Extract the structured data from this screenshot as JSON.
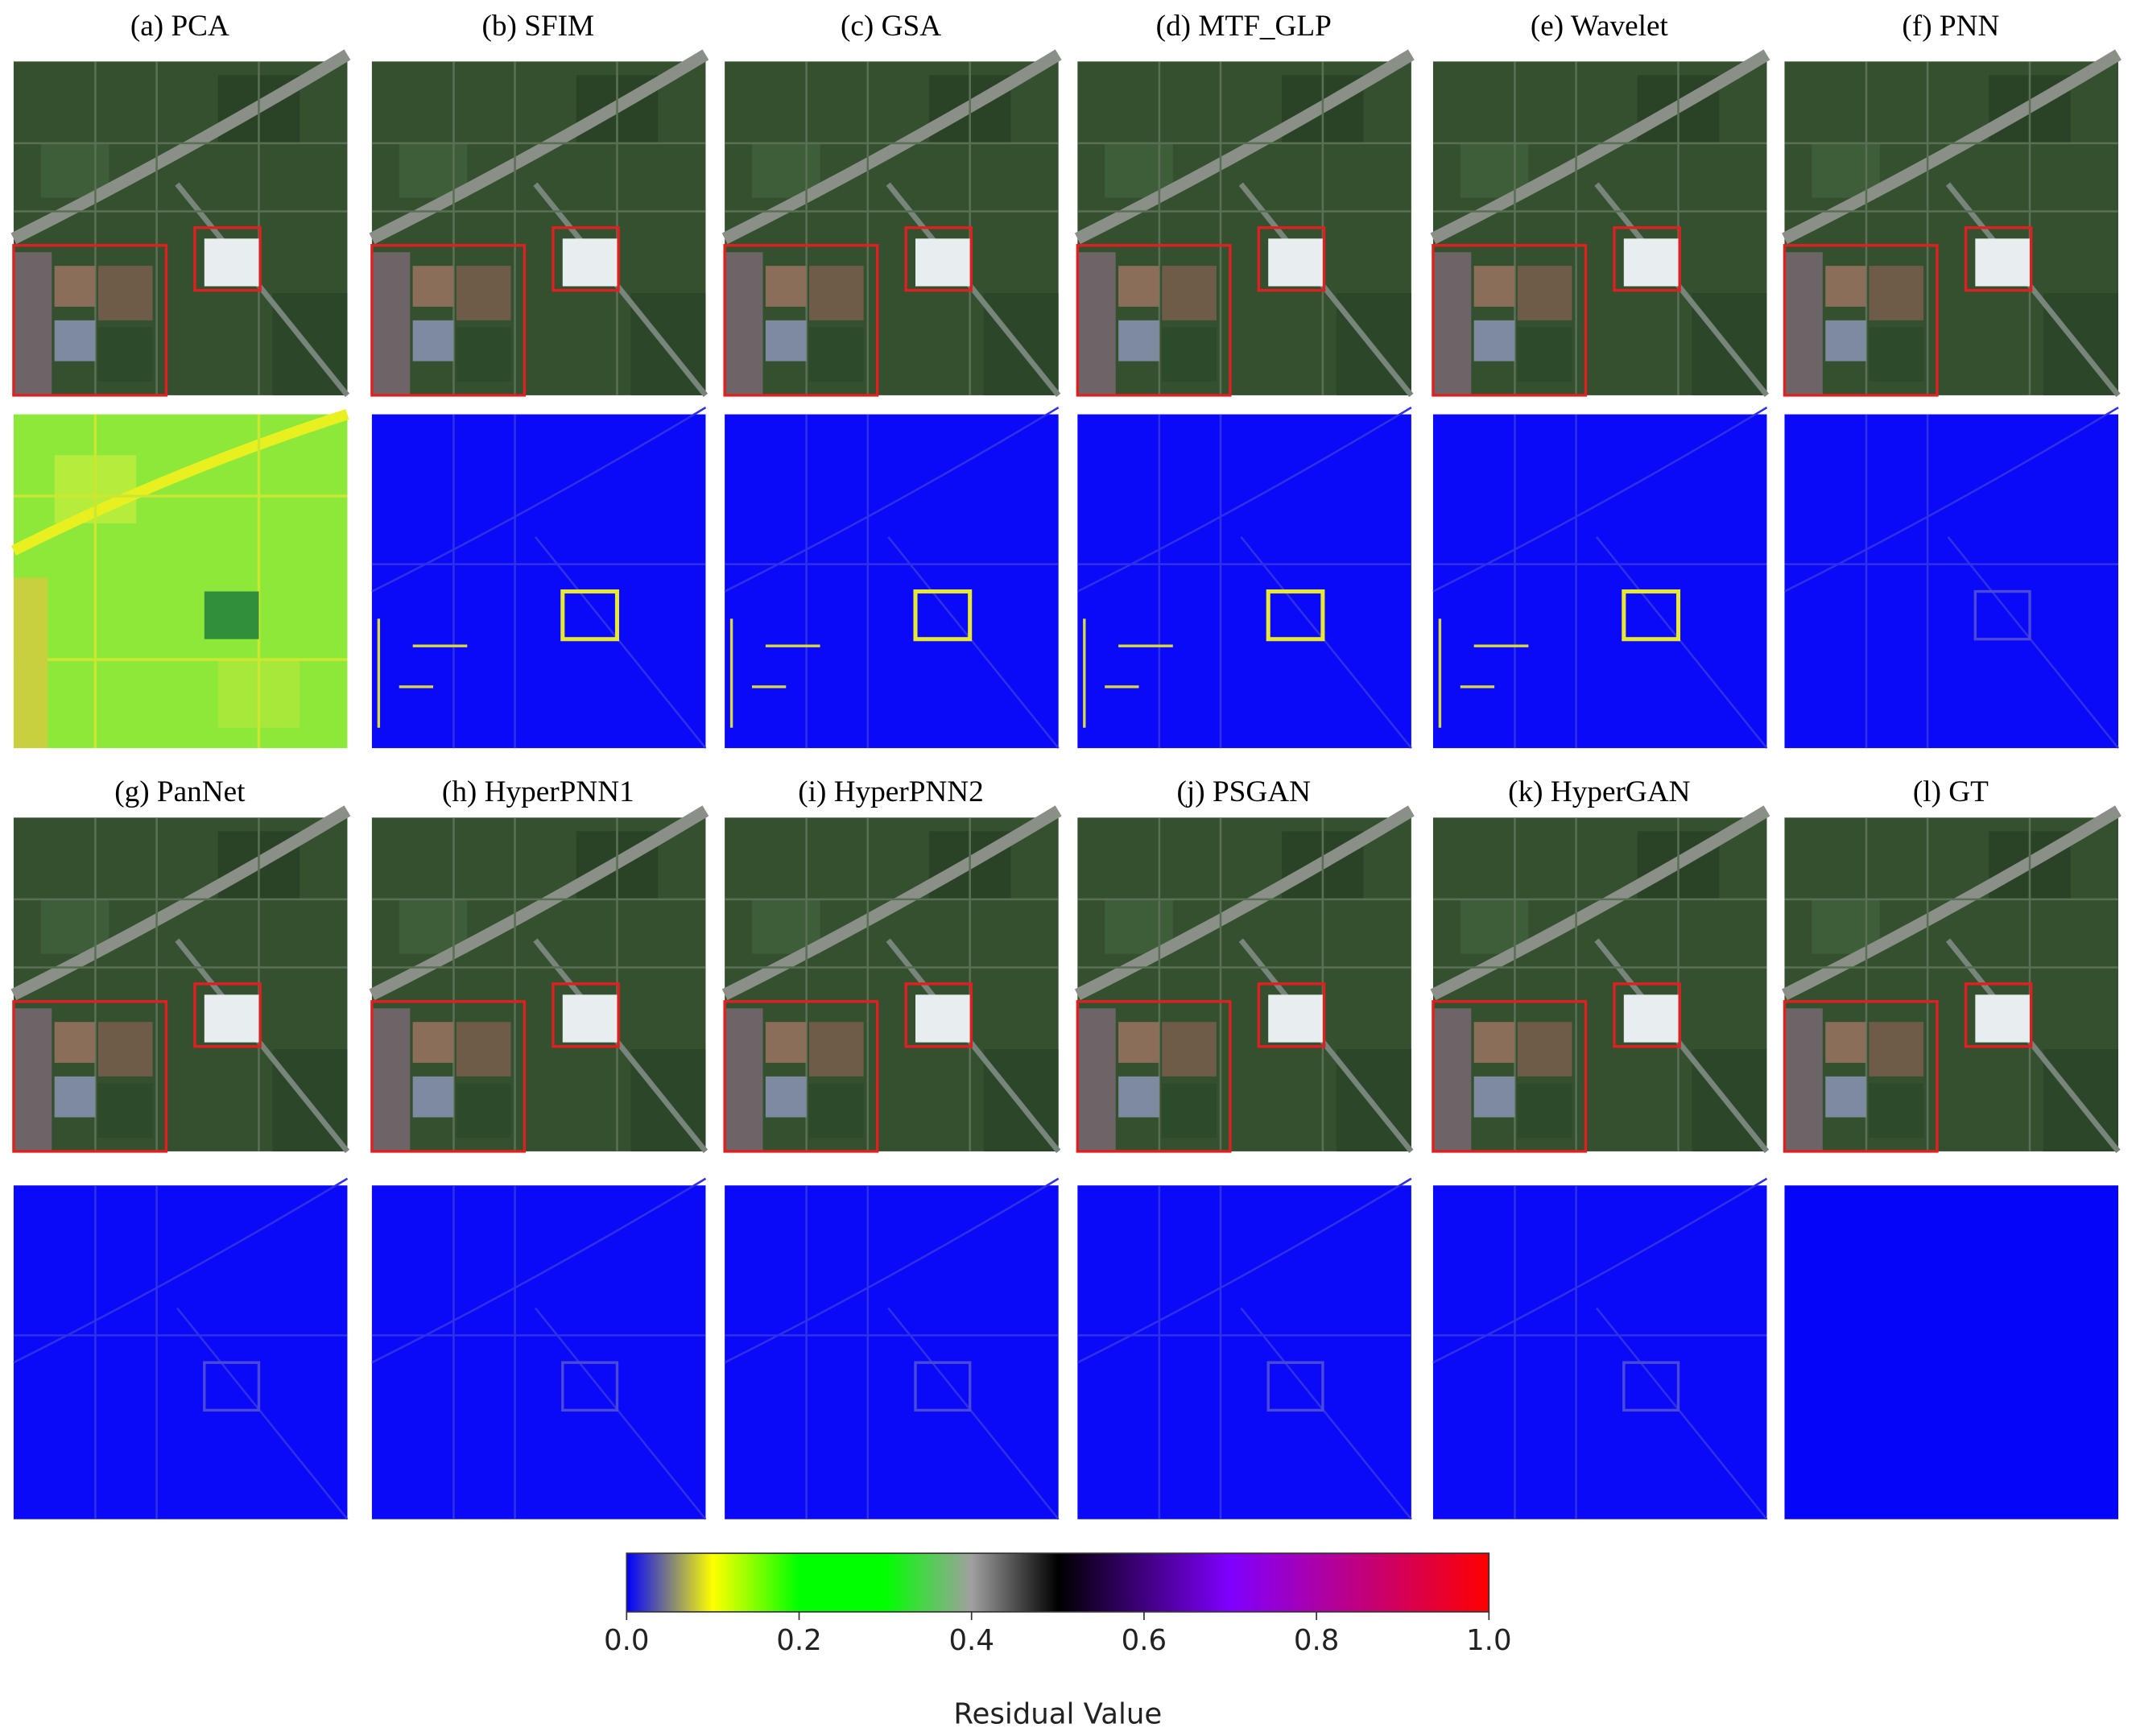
{
  "panels": [
    {
      "label": "(a) PCA"
    },
    {
      "label": "(b) SFIM"
    },
    {
      "label": "(c) GSA"
    },
    {
      "label": "(d) MTF_GLP"
    },
    {
      "label": "(e) Wavelet"
    },
    {
      "label": "(f) PNN"
    },
    {
      "label": "(g) PanNet"
    },
    {
      "label": "(h) HyperPNN1"
    },
    {
      "label": "(i) HyperPNN2"
    },
    {
      "label": "(j) PSGAN"
    },
    {
      "label": "(k) HyperGAN"
    },
    {
      "label": "(l) GT"
    }
  ],
  "colorbar": {
    "range": [
      0,
      1
    ],
    "ticks": [
      {
        "value": 0,
        "label": "0.0"
      },
      0.2,
      0.4,
      0.6,
      0.8,
      {
        "value": 1,
        "label": "1.0"
      }
    ],
    "label": "Residual Value"
  }
}
